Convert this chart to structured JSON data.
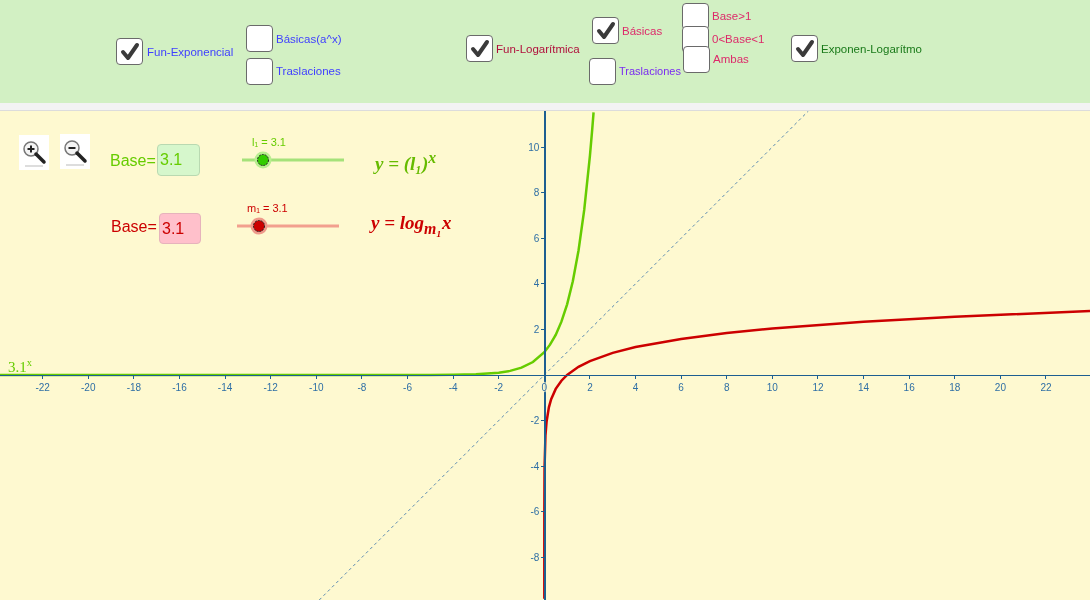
{
  "chart_data": {
    "type": "line",
    "xlim": [
      -23.87,
      23.93
    ],
    "ylim": [
      -9.87,
      11.58
    ],
    "xticks": [
      -22,
      -20,
      -18,
      -16,
      -14,
      -12,
      -10,
      -8,
      -6,
      -4,
      -2,
      0,
      2,
      4,
      6,
      8,
      10,
      12,
      14,
      16,
      18,
      20,
      22
    ],
    "yticks": [
      -8,
      -6,
      -4,
      -2,
      2,
      4,
      6,
      8,
      10
    ],
    "series": [
      {
        "name": "3.1$^{x}$",
        "color": "#66cc00",
        "x": [
          -23.87,
          -10,
          -5,
          -4,
          -3,
          -2.5,
          -2,
          -1.5,
          -1,
          -0.5,
          0,
          0.25,
          0.5,
          0.75,
          1,
          1.25,
          1.5,
          1.75,
          2,
          2.1,
          2.16
        ],
        "values": [
          0,
          0,
          0,
          0.01,
          0.03,
          0.06,
          0.1,
          0.18,
          0.32,
          0.57,
          1,
          1.33,
          1.76,
          2.34,
          3.1,
          4.11,
          5.46,
          7.24,
          9.61,
          10.76,
          11.52
        ]
      },
      {
        "color": "#cc0000",
        "x": [
          1.5e-05,
          0.0001,
          0.001,
          0.01,
          0.05,
          0.1,
          0.2,
          0.3,
          0.5,
          0.75,
          1,
          1.5,
          2,
          3,
          4,
          6,
          8,
          10,
          14,
          18,
          23.93
        ],
        "values": [
          -9.82,
          -8.14,
          -6.11,
          -4.07,
          -2.65,
          -2.04,
          -1.42,
          -1.06,
          -0.61,
          -0.25,
          0,
          0.36,
          0.61,
          0.97,
          1.23,
          1.58,
          1.84,
          2.04,
          2.33,
          2.55,
          2.81
        ]
      },
      {
        "color": "#5a8ab0",
        "line_style": "dotted",
        "x": [
          -9.87,
          11.58
        ],
        "values": [
          -9.87,
          11.58
        ]
      }
    ],
    "annotations": [
      "Fun-Exponencial",
      "Básicas(a^x)",
      "Traslaciones",
      "Fun-Logarítmica",
      "Básicas",
      "Traslaciones",
      "Base>1",
      "0<Base<1",
      "Ambas",
      "Exponen-Logarítmo",
      "Base=",
      "3.1",
      "l₁ = 3.1",
      "y = (l₁)$^{x}$",
      "Base=",
      "3.1",
      "m₁ = 3.1",
      "y = log$_{m₁}$x"
    ]
  }
}
